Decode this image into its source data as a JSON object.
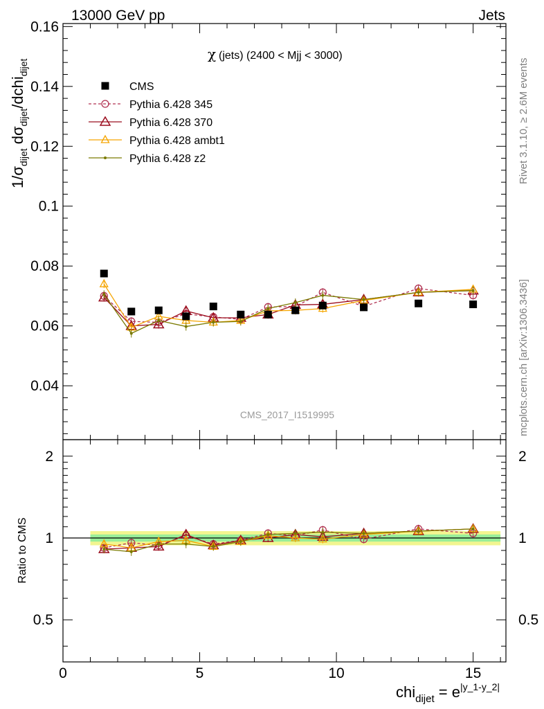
{
  "header": {
    "left": "13000 GeV pp",
    "right": "Jets"
  },
  "side_labels": {
    "rivet": "Rivet 3.1.10, ≥ 2.6M events",
    "mcplots": "mcplots.cern.ch [arXiv:1306.3436]"
  },
  "watermark": "CMS_2017_I1519995",
  "main_panel": {
    "title_text": "(jets) (2400 < Mjj < 3000)",
    "title_symbol": "χ",
    "ylabel": "1/σdijet dσdijet/dchidijet",
    "ylim": [
      0.022,
      0.161
    ],
    "yticks": [
      "0.04",
      "0.06",
      "0.08",
      "0.1",
      "0.12",
      "0.14",
      "0.16"
    ]
  },
  "ratio_panel": {
    "ylabel": "Ratio to CMS",
    "yticks": [
      "0.5",
      "1",
      "2"
    ],
    "ylim": [
      0.35,
      2.3
    ]
  },
  "xaxis": {
    "label": "chidijet = e|y_1-y_2|",
    "xlim": [
      0,
      16.2
    ],
    "xticks": [
      "0",
      "5",
      "10",
      "15"
    ]
  },
  "legend": [
    "CMS",
    "Pythia 6.428 345",
    "Pythia 6.428 370",
    "Pythia 6.428 ambt1",
    "Pythia 6.428 z2"
  ],
  "colors": {
    "cms": "#000000",
    "p345": "#b03050",
    "p370": "#9b0d1e",
    "ambt1": "#f5a500",
    "z2": "#7a7a00",
    "band_outer": "#f2f590",
    "band_inner": "#99ee99"
  },
  "chart_data": {
    "type": "line",
    "x": [
      1.5,
      2.5,
      3.5,
      4.5,
      5.5,
      6.5,
      7.5,
      8.5,
      9.5,
      11.0,
      13.0,
      15.0
    ],
    "x_bins": [
      [
        1,
        2
      ],
      [
        2,
        3
      ],
      [
        3,
        4
      ],
      [
        4,
        5
      ],
      [
        5,
        6
      ],
      [
        6,
        7
      ],
      [
        7,
        8
      ],
      [
        8,
        9
      ],
      [
        9,
        10
      ],
      [
        10,
        12
      ],
      [
        12,
        14
      ],
      [
        14,
        16
      ]
    ],
    "series": [
      {
        "name": "CMS",
        "values": [
          0.0775,
          0.0648,
          0.0652,
          0.0632,
          0.0665,
          0.0638,
          0.0638,
          0.0652,
          0.0668,
          0.0662,
          0.0675,
          0.0672
        ]
      },
      {
        "name": "Pythia 6.428 345",
        "values": [
          0.07,
          0.0615,
          0.0612,
          0.064,
          0.063,
          0.0622,
          0.0663,
          0.0665,
          0.0712,
          0.0665,
          0.0725,
          0.0702
        ]
      },
      {
        "name": "Pythia 6.428 370",
        "values": [
          0.0695,
          0.06,
          0.0605,
          0.065,
          0.0627,
          0.0627,
          0.0638,
          0.067,
          0.0672,
          0.0688,
          0.0712,
          0.0718
        ]
      },
      {
        "name": "Pythia 6.428 ambt1",
        "values": [
          0.074,
          0.0595,
          0.0632,
          0.0618,
          0.0612,
          0.0618,
          0.065,
          0.0652,
          0.0658,
          0.0685,
          0.0712,
          0.0722
        ]
      },
      {
        "name": "Pythia 6.428 z2",
        "values": [
          0.0705,
          0.0575,
          0.0618,
          0.0598,
          0.0612,
          0.0615,
          0.0658,
          0.0678,
          0.0702,
          0.0688,
          0.0712,
          0.0718
        ]
      }
    ],
    "ratio_series": [
      {
        "name": "Pythia 6.428 345",
        "values": [
          0.92,
          0.96,
          0.94,
          1.02,
          0.95,
          0.98,
          1.04,
          1.02,
          1.07,
          0.99,
          1.08,
          1.04
        ]
      },
      {
        "name": "Pythia 6.428 370",
        "values": [
          0.91,
          0.92,
          0.93,
          1.03,
          0.94,
          0.98,
          1.0,
          1.03,
          1.01,
          1.04,
          1.06,
          1.08
        ]
      },
      {
        "name": "Pythia 6.428 ambt1",
        "values": [
          0.95,
          0.92,
          0.97,
          0.98,
          0.93,
          0.97,
          1.02,
          1.0,
          0.99,
          1.03,
          1.06,
          1.08
        ]
      },
      {
        "name": "Pythia 6.428 z2",
        "values": [
          0.91,
          0.89,
          0.95,
          0.95,
          0.93,
          0.97,
          1.03,
          1.04,
          1.05,
          1.04,
          1.06,
          1.08
        ]
      }
    ],
    "ratio_band_inner": 0.03,
    "ratio_band_outer": 0.06
  }
}
